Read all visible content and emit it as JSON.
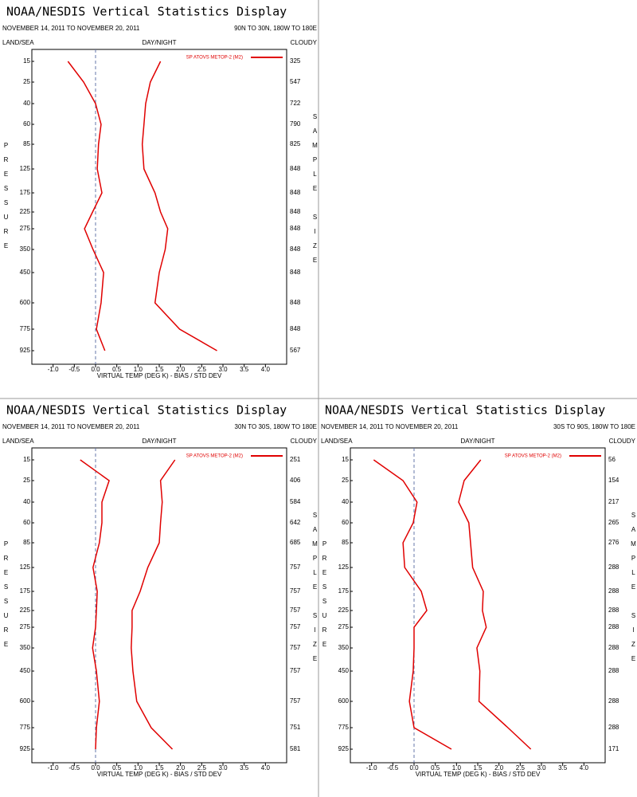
{
  "chart_data": [
    {
      "type": "line",
      "title": "NOAA/NESDIS Vertical Statistics Display",
      "subtitle": "NOVEMBER 14, 2011 TO NOVEMBER 20, 2011",
      "region": "90N TO 30N, 180W TO 180E",
      "header_left": "LAND/SEA",
      "header_center": "DAY/NIGHT",
      "header_right": "CLOUDY",
      "y_label": "PRESSURE",
      "y2_label": "SAMPLE SIZE",
      "x_label": "VIRTUAL TEMP (DEG K) - BIAS / STD DEV",
      "categories": [
        "15",
        "25",
        "40",
        "60",
        "85",
        "125",
        "175",
        "225",
        "275",
        "350",
        "450",
        "600",
        "775",
        "925"
      ],
      "sample_size": [
        325,
        547,
        722,
        790,
        825,
        848,
        848,
        848,
        848,
        848,
        848,
        848,
        848,
        567
      ],
      "series": [
        {
          "name": "SP ATOVS METOP-2 (M2)",
          "color": "#e00000",
          "bias": [
            -0.65,
            -0.28,
            0.0,
            0.13,
            0.07,
            0.04,
            0.15,
            -0.07,
            -0.26,
            -0.06,
            0.19,
            0.13,
            0.02,
            0.22
          ],
          "std_dev": [
            1.53,
            1.29,
            1.18,
            1.14,
            1.1,
            1.14,
            1.4,
            1.53,
            1.7,
            1.64,
            1.5,
            1.4,
            1.98,
            2.86
          ]
        }
      ],
      "xlim": [
        -1.5,
        4.5
      ],
      "xticks": [
        {
          "value": -1,
          "label": "-1.0"
        },
        {
          "value": -0.5,
          "label": "-0.5"
        },
        {
          "value": 0,
          "label": "0.0"
        },
        0.5,
        {
          "value": 1,
          "label": "1.0"
        },
        1.5,
        {
          "value": 2,
          "label": "2.0"
        },
        2.5,
        {
          "value": 3,
          "label": "3.0"
        },
        3.5,
        {
          "value": 4,
          "label": "4.0"
        }
      ]
    },
    {
      "type": "line",
      "title": "NOAA/NESDIS Vertical Statistics Display",
      "subtitle": "NOVEMBER 14, 2011 TO NOVEMBER 20, 2011",
      "region": "30N TO 30S, 180W TO 180E",
      "header_left": "LAND/SEA",
      "header_center": "DAY/NIGHT",
      "header_right": "CLOUDY",
      "y_label": "PRESSURE",
      "y2_label": "SAMPLE SIZE",
      "x_label": "VIRTUAL TEMP (DEG K) - BIAS / STD DEV",
      "categories": [
        "15",
        "25",
        "40",
        "60",
        "85",
        "125",
        "175",
        "225",
        "275",
        "350",
        "450",
        "600",
        "775",
        "925"
      ],
      "sample_size": [
        251,
        406,
        584,
        642,
        685,
        757,
        757,
        757,
        757,
        757,
        757,
        757,
        751,
        581
      ],
      "series": [
        {
          "name": "SP ATOVS METOP-2 (M2)",
          "color": "#e00000",
          "bias": [
            -0.36,
            0.32,
            0.15,
            0.15,
            0.09,
            -0.06,
            0.04,
            0.02,
            0.0,
            -0.07,
            0.02,
            0.09,
            0.02,
            0.0
          ],
          "std_dev": [
            1.87,
            1.53,
            1.57,
            1.53,
            1.5,
            1.23,
            1.05,
            0.86,
            0.86,
            0.84,
            0.88,
            0.97,
            1.31,
            1.81
          ]
        }
      ],
      "xlim": [
        -1.5,
        4.5
      ],
      "xticks": [
        {
          "value": -1,
          "label": "-1.0"
        },
        {
          "value": -0.5,
          "label": "-0.5"
        },
        {
          "value": 0,
          "label": "0.0"
        },
        0.5,
        {
          "value": 1,
          "label": "1.0"
        },
        1.5,
        {
          "value": 2,
          "label": "2.0"
        },
        2.5,
        {
          "value": 3,
          "label": "3.0"
        },
        3.5,
        {
          "value": 4,
          "label": "4.0"
        }
      ]
    },
    {
      "type": "line",
      "title": "NOAA/NESDIS Vertical Statistics Display",
      "subtitle": "NOVEMBER 14, 2011 TO NOVEMBER 20, 2011",
      "region": "30S TO 90S, 180W TO 180E",
      "header_left": "LAND/SEA",
      "header_center": "DAY/NIGHT",
      "header_right": "CLOUDY",
      "y_label": "PRESSURE",
      "y2_label": "SAMPLE SIZE",
      "x_label": "VIRTUAL TEMP (DEG K) - BIAS / STD DEV",
      "categories": [
        "15",
        "25",
        "40",
        "60",
        "85",
        "125",
        "175",
        "225",
        "275",
        "350",
        "450",
        "600",
        "775",
        "925"
      ],
      "sample_size": [
        56,
        154,
        217,
        265,
        276,
        288,
        288,
        288,
        288,
        288,
        288,
        288,
        288,
        171
      ],
      "series": [
        {
          "name": "SP ATOVS METOP-2 (M2)",
          "color": "#e00000",
          "bias": [
            -0.95,
            -0.26,
            0.07,
            -0.02,
            -0.26,
            -0.22,
            0.17,
            0.3,
            0.0,
            0.0,
            -0.02,
            -0.11,
            0.0,
            0.88
          ],
          "std_dev": [
            1.57,
            1.18,
            1.05,
            1.29,
            1.33,
            1.38,
            1.63,
            1.61,
            1.7,
            1.48,
            1.55,
            1.53,
            2.21,
            2.75
          ]
        }
      ],
      "xlim": [
        -1.5,
        4.5
      ],
      "xticks": [
        {
          "value": -1,
          "label": "-1.0"
        },
        {
          "value": -0.5,
          "label": "-0.5"
        },
        {
          "value": 0,
          "label": "0.0"
        },
        0.5,
        {
          "value": 1,
          "label": "1.0"
        },
        1.5,
        {
          "value": 2,
          "label": "2.0"
        },
        2.5,
        {
          "value": 3,
          "label": "3.0"
        },
        3.5,
        {
          "value": 4,
          "label": "4.0"
        }
      ]
    }
  ]
}
